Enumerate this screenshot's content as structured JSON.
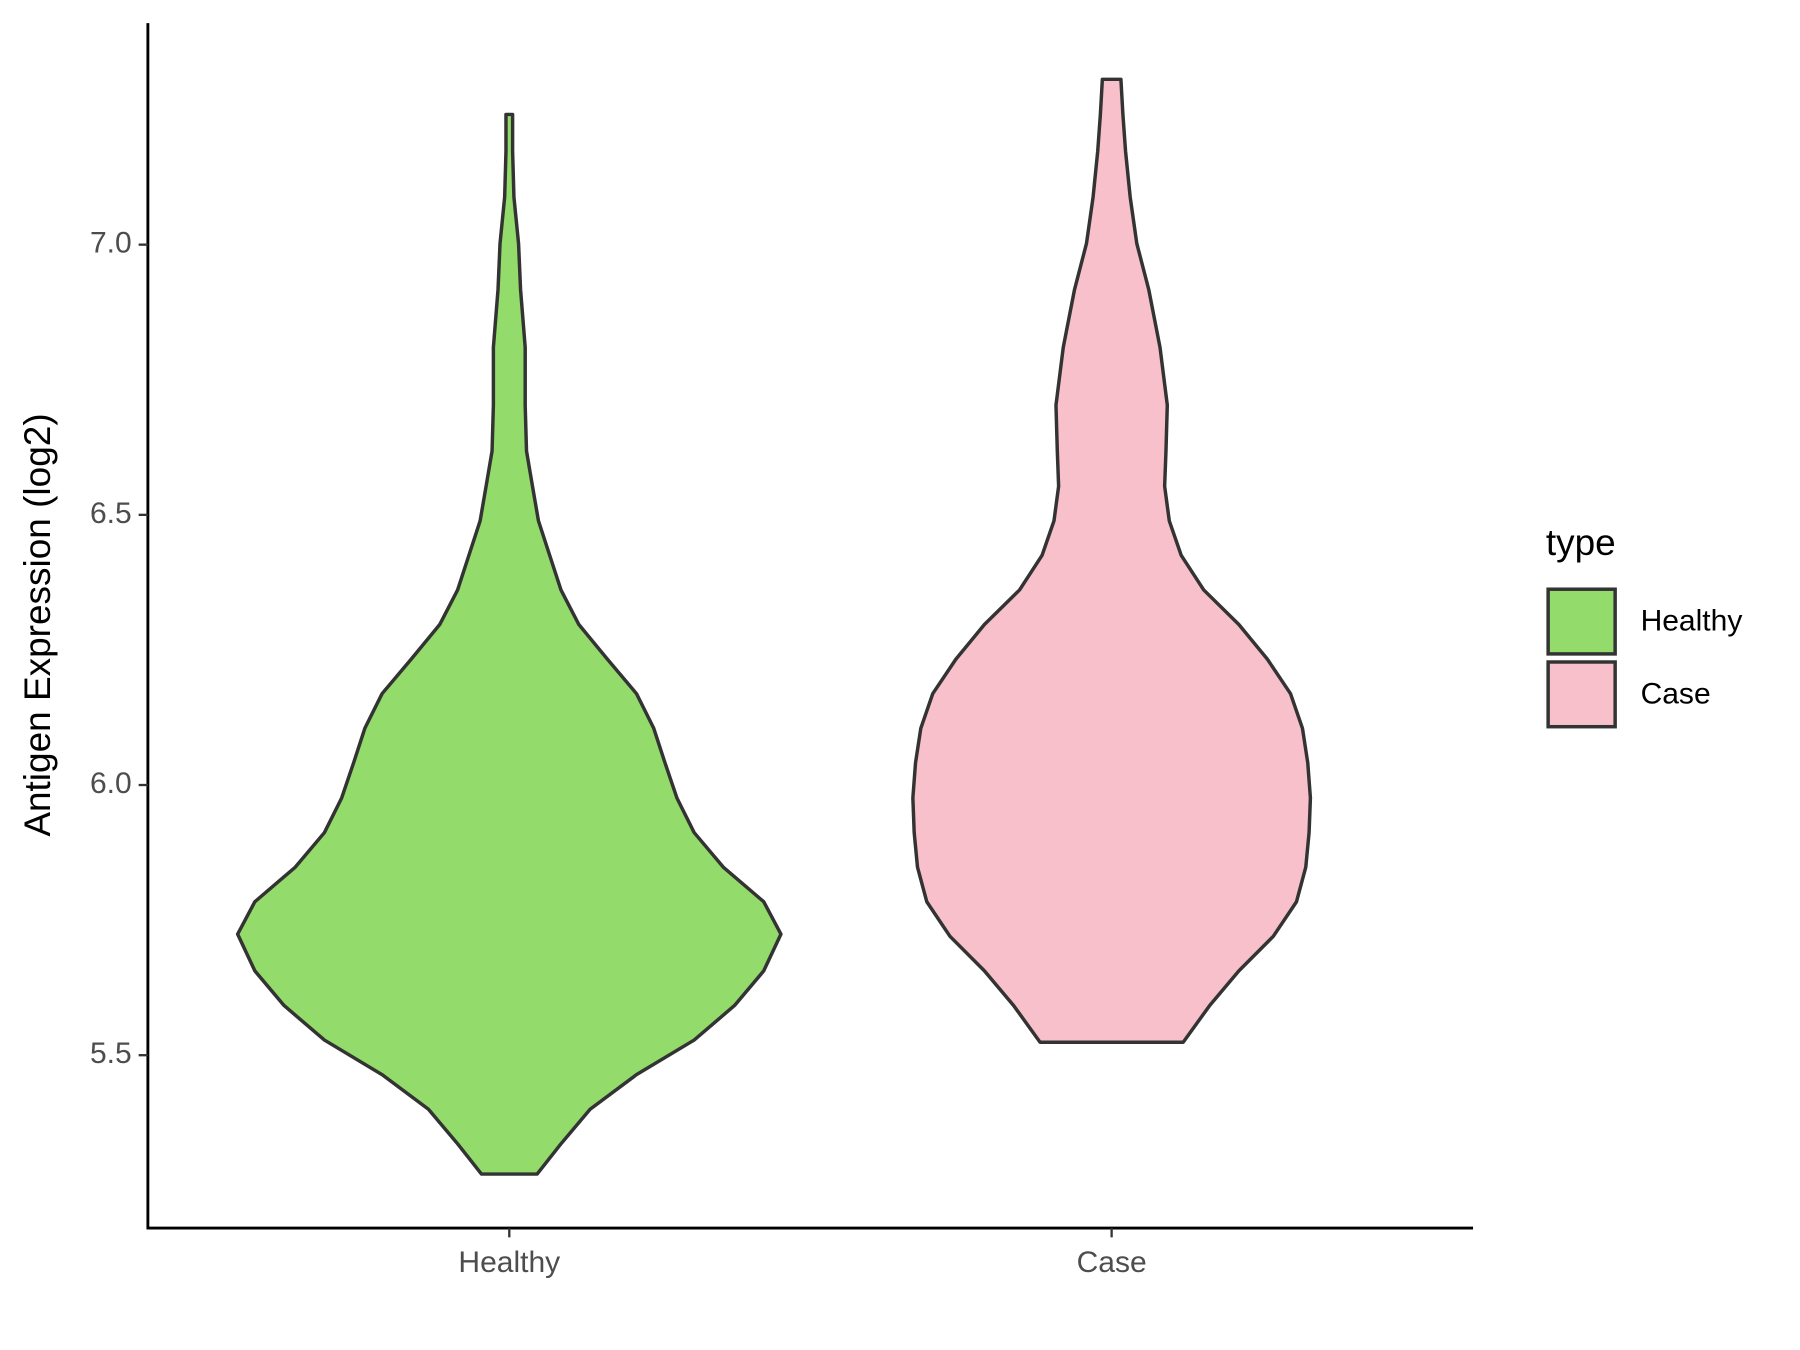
{
  "chart_data": {
    "type": "violin",
    "y_label": "Antigen Expression (log2)",
    "legend_title": "type",
    "categories": [
      "Healthy",
      "Case"
    ],
    "ylim": [
      5.18,
      7.41
    ],
    "yticks": [
      {
        "value": 5.5,
        "label": "5.5"
      },
      {
        "value": 6,
        "label": "6.0"
      },
      {
        "value": 6.5,
        "label": "6.5"
      },
      {
        "value": 7,
        "label": "7.0"
      }
    ],
    "outline_color": "#333333",
    "series": [
      {
        "name": "Healthy",
        "color": "#93dc6b",
        "y": [
          5.28,
          5.336,
          5.4,
          5.464,
          5.528,
          5.592,
          5.656,
          5.724,
          5.784,
          5.848,
          5.912,
          5.976,
          6.041,
          6.105,
          6.169,
          6.233,
          6.297,
          6.361,
          6.425,
          6.489,
          6.553,
          6.618,
          6.703,
          6.81,
          6.917,
          7.002,
          7.088,
          7.173,
          7.241
        ],
        "widths": [
          0.042,
          0.078,
          0.122,
          0.192,
          0.279,
          0.34,
          0.384,
          0.41,
          0.384,
          0.323,
          0.279,
          0.253,
          0.235,
          0.218,
          0.192,
          0.148,
          0.105,
          0.078,
          0.061,
          0.044,
          0.035,
          0.026,
          0.024,
          0.024,
          0.017,
          0.014,
          0.007,
          0.005,
          0.005
        ]
      },
      {
        "name": "Case",
        "color": "#f7c0cb",
        "y": [
          5.524,
          5.592,
          5.656,
          5.72,
          5.784,
          5.848,
          5.912,
          5.976,
          6.041,
          6.105,
          6.169,
          6.233,
          6.297,
          6.361,
          6.425,
          6.489,
          6.553,
          6.618,
          6.703,
          6.81,
          6.917,
          7.002,
          7.088,
          7.173,
          7.241,
          7.306
        ],
        "widths": [
          0.108,
          0.148,
          0.192,
          0.244,
          0.279,
          0.293,
          0.298,
          0.3,
          0.296,
          0.288,
          0.27,
          0.235,
          0.192,
          0.139,
          0.105,
          0.087,
          0.08,
          0.082,
          0.084,
          0.073,
          0.056,
          0.038,
          0.028,
          0.021,
          0.017,
          0.014
        ]
      }
    ]
  }
}
